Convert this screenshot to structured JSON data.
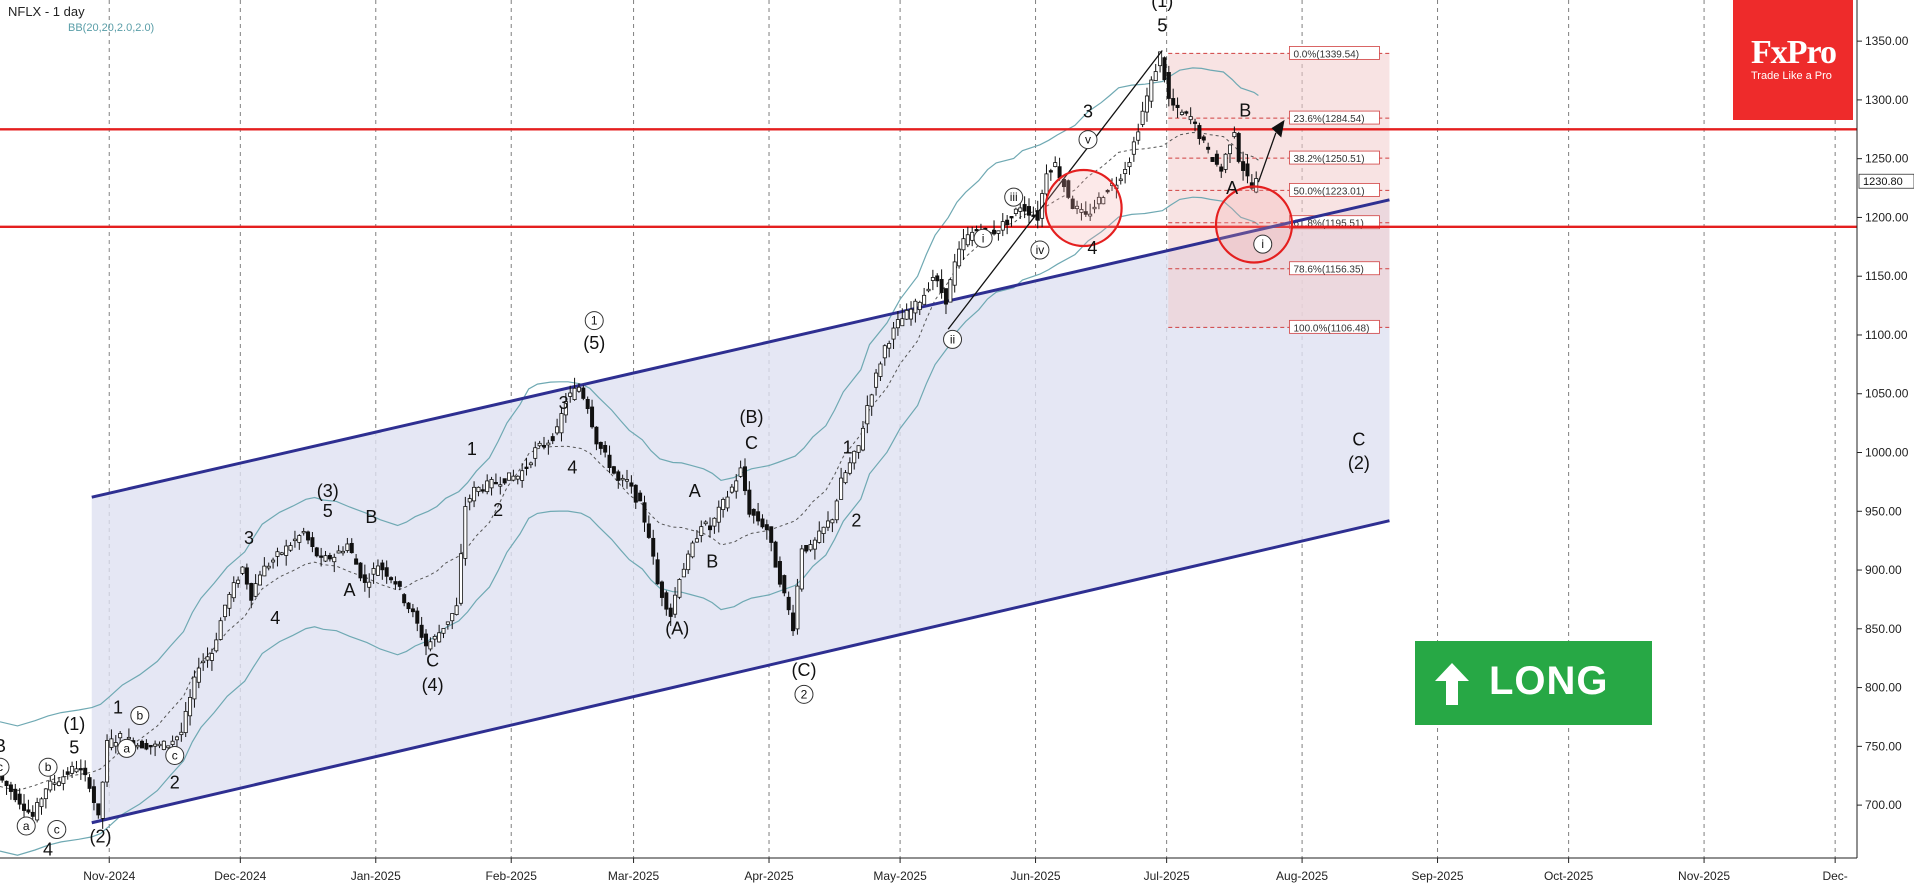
{
  "header": {
    "symbol_title": "NFLX - 1 day",
    "indicator_label": "BB(20,20,2.0,2.0)"
  },
  "brand": {
    "name": "FxPro",
    "tagline": "Trade Like a Pro",
    "color": "#ee2b2b"
  },
  "signal": {
    "label": "LONG",
    "color": "#27a845",
    "icon": "arrow-up-icon"
  },
  "chart_data": {
    "type": "candlestick",
    "title": "NFLX - 1 day",
    "ylim": [
      655,
      1385
    ],
    "y_ticks": [
      700,
      750,
      800,
      850,
      900,
      950,
      1000,
      1050,
      1100,
      1150,
      1200,
      1250,
      1300,
      1350
    ],
    "y_tick_labels": [
      "700.00",
      "750.00",
      "800.00",
      "850.00",
      "900.00",
      "950.00",
      "1000.00",
      "1050.00",
      "1100.00",
      "1150.00",
      "1200.00",
      "1250.00",
      "1300.00",
      "1350.00"
    ],
    "current_price": "1230.80",
    "x_range": [
      "2024-10-07",
      "2025-12-06"
    ],
    "x_ticks": [
      {
        "date": "2024-11-01",
        "label": "Nov-2024"
      },
      {
        "date": "2024-12-01",
        "label": "Dec-2024"
      },
      {
        "date": "2025-01-01",
        "label": "Jan-2025"
      },
      {
        "date": "2025-02-01",
        "label": "Feb-2025"
      },
      {
        "date": "2025-03-01",
        "label": "Mar-2025"
      },
      {
        "date": "2025-04-01",
        "label": "Apr-2025"
      },
      {
        "date": "2025-05-01",
        "label": "May-2025"
      },
      {
        "date": "2025-06-01",
        "label": "Jun-2025"
      },
      {
        "date": "2025-07-01",
        "label": "Jul-2025"
      },
      {
        "date": "2025-08-01",
        "label": "Aug-2025"
      },
      {
        "date": "2025-09-01",
        "label": "Sep-2025"
      },
      {
        "date": "2025-10-01",
        "label": "Oct-2025"
      },
      {
        "date": "2025-11-01",
        "label": "Nov-2025"
      },
      {
        "date": "2025-12-01",
        "label": "Dec-"
      }
    ],
    "price_path": [
      [
        "2024-10-07",
        725
      ],
      [
        "2024-10-11",
        708
      ],
      [
        "2024-10-15",
        690
      ],
      [
        "2024-10-18",
        715
      ],
      [
        "2024-10-21",
        722
      ],
      [
        "2024-10-25",
        733
      ],
      [
        "2024-10-28",
        718
      ],
      [
        "2024-10-30",
        688
      ],
      [
        "2024-11-01",
        752
      ],
      [
        "2024-11-04",
        758
      ],
      [
        "2024-11-08",
        752
      ],
      [
        "2024-11-12",
        750
      ],
      [
        "2024-11-15",
        752
      ],
      [
        "2024-11-18",
        762
      ],
      [
        "2024-11-20",
        790
      ],
      [
        "2024-11-22",
        820
      ],
      [
        "2024-11-25",
        830
      ],
      [
        "2024-11-28",
        870
      ],
      [
        "2024-12-02",
        902
      ],
      [
        "2024-12-04",
        878
      ],
      [
        "2024-12-06",
        898
      ],
      [
        "2024-12-10",
        912
      ],
      [
        "2024-12-13",
        922
      ],
      [
        "2024-12-16",
        932
      ],
      [
        "2024-12-18",
        918
      ],
      [
        "2024-12-20",
        908
      ],
      [
        "2024-12-23",
        912
      ],
      [
        "2024-12-26",
        922
      ],
      [
        "2024-12-30",
        888
      ],
      [
        "2025-01-02",
        905
      ],
      [
        "2025-01-06",
        890
      ],
      [
        "2025-01-08",
        875
      ],
      [
        "2025-01-10",
        862
      ],
      [
        "2025-01-13",
        836
      ],
      [
        "2025-01-15",
        842
      ],
      [
        "2025-01-17",
        852
      ],
      [
        "2025-01-20",
        868
      ],
      [
        "2025-01-22",
        955
      ],
      [
        "2025-01-24",
        968
      ],
      [
        "2025-01-27",
        972
      ],
      [
        "2025-01-29",
        975
      ],
      [
        "2025-01-31",
        978
      ],
      [
        "2025-02-03",
        980
      ],
      [
        "2025-02-05",
        988
      ],
      [
        "2025-02-07",
        1002
      ],
      [
        "2025-02-10",
        1010
      ],
      [
        "2025-02-12",
        1018
      ],
      [
        "2025-02-14",
        1045
      ],
      [
        "2025-02-17",
        1056
      ],
      [
        "2025-02-19",
        1040
      ],
      [
        "2025-02-21",
        1010
      ],
      [
        "2025-02-24",
        990
      ],
      [
        "2025-02-26",
        975
      ],
      [
        "2025-02-28",
        975
      ],
      [
        "2025-03-03",
        955
      ],
      [
        "2025-03-05",
        930
      ],
      [
        "2025-03-07",
        888
      ],
      [
        "2025-03-10",
        862
      ],
      [
        "2025-03-12",
        895
      ],
      [
        "2025-03-14",
        910
      ],
      [
        "2025-03-17",
        940
      ],
      [
        "2025-03-19",
        935
      ],
      [
        "2025-03-21",
        950
      ],
      [
        "2025-03-24",
        970
      ],
      [
        "2025-03-26",
        985
      ],
      [
        "2025-03-28",
        950
      ],
      [
        "2025-04-01",
        935
      ],
      [
        "2025-04-03",
        905
      ],
      [
        "2025-04-07",
        852
      ],
      [
        "2025-04-09",
        920
      ],
      [
        "2025-04-11",
        918
      ],
      [
        "2025-04-14",
        935
      ],
      [
        "2025-04-16",
        945
      ],
      [
        "2025-04-18",
        975
      ],
      [
        "2025-04-22",
        1005
      ],
      [
        "2025-04-24",
        1040
      ],
      [
        "2025-04-28",
        1090
      ],
      [
        "2025-05-01",
        1110
      ],
      [
        "2025-05-05",
        1125
      ],
      [
        "2025-05-07",
        1135
      ],
      [
        "2025-05-09",
        1150
      ],
      [
        "2025-05-12",
        1130
      ],
      [
        "2025-05-14",
        1160
      ],
      [
        "2025-05-16",
        1180
      ],
      [
        "2025-05-19",
        1190
      ],
      [
        "2025-05-21",
        1185
      ],
      [
        "2025-05-23",
        1188
      ],
      [
        "2025-05-27",
        1200
      ],
      [
        "2025-05-29",
        1210
      ],
      [
        "2025-06-02",
        1200
      ],
      [
        "2025-06-04",
        1240
      ],
      [
        "2025-06-06",
        1245
      ],
      [
        "2025-06-10",
        1210
      ],
      [
        "2025-06-13",
        1200
      ],
      [
        "2025-06-16",
        1215
      ],
      [
        "2025-06-18",
        1225
      ],
      [
        "2025-06-20",
        1230
      ],
      [
        "2025-06-23",
        1250
      ],
      [
        "2025-06-26",
        1290
      ],
      [
        "2025-06-30",
        1339
      ],
      [
        "2025-07-02",
        1300
      ],
      [
        "2025-07-04",
        1290
      ],
      [
        "2025-07-07",
        1285
      ],
      [
        "2025-07-09",
        1270
      ],
      [
        "2025-07-11",
        1255
      ],
      [
        "2025-07-14",
        1240
      ],
      [
        "2025-07-16",
        1265
      ],
      [
        "2025-07-17",
        1275
      ],
      [
        "2025-07-18",
        1250
      ],
      [
        "2025-07-21",
        1225
      ],
      [
        "2025-07-22",
        1231
      ]
    ],
    "fibonacci": {
      "levels": [
        {
          "ratio": "0.0%",
          "value": 1339.54,
          "label": "0.0%(1339.54)"
        },
        {
          "ratio": "23.6%",
          "value": 1284.54,
          "label": "23.6%(1284.54)"
        },
        {
          "ratio": "38.2%",
          "value": 1250.51,
          "label": "38.2%(1250.51)"
        },
        {
          "ratio": "50.0%",
          "value": 1223.01,
          "label": "50.0%(1223.01)"
        },
        {
          "ratio": "61.8%",
          "value": 1195.51,
          "label": "61.8%(1195.51)"
        },
        {
          "ratio": "78.6%",
          "value": 1156.35,
          "label": "78.6%(1156.35)"
        },
        {
          "ratio": "100.0%",
          "value": 1106.48,
          "label": "100.0%(1106.48)"
        }
      ],
      "date_range": [
        "2025-06-30",
        "2025-08-21"
      ]
    },
    "horizontal_lines": [
      1275,
      1192
    ],
    "channel": {
      "upper": [
        [
          "2024-10-28",
          962
        ],
        [
          "2025-08-21",
          1215
        ]
      ],
      "lower": [
        [
          "2024-10-28",
          685
        ],
        [
          "2025-08-21",
          942
        ]
      ]
    },
    "circles": [
      {
        "date": "2025-06-12",
        "price": 1208
      },
      {
        "date": "2025-07-21",
        "price": 1194
      }
    ],
    "annotations": [
      {
        "text": "B",
        "date": "2024-10-07",
        "price": 745
      },
      {
        "text": "c",
        "date": "2024-10-07",
        "price": 728,
        "circled": true
      },
      {
        "text": "a",
        "date": "2024-10-13",
        "price": 678,
        "circled": true
      },
      {
        "text": "b",
        "date": "2024-10-18",
        "price": 728,
        "circled": true
      },
      {
        "text": "c",
        "date": "2024-10-20",
        "price": 675,
        "circled": true
      },
      {
        "text": "4",
        "date": "2024-10-18",
        "price": 657
      },
      {
        "text": "(1)",
        "date": "2024-10-24",
        "price": 764
      },
      {
        "text": "5",
        "date": "2024-10-24",
        "price": 744
      },
      {
        "text": "(2)",
        "date": "2024-10-30",
        "price": 668
      },
      {
        "text": "1",
        "date": "2024-11-03",
        "price": 778
      },
      {
        "text": "b",
        "date": "2024-11-08",
        "price": 772,
        "circled": true
      },
      {
        "text": "a",
        "date": "2024-11-05",
        "price": 744,
        "circled": true
      },
      {
        "text": "c",
        "date": "2024-11-16",
        "price": 738,
        "circled": true
      },
      {
        "text": "2",
        "date": "2024-11-16",
        "price": 714
      },
      {
        "text": "3",
        "date": "2024-12-03",
        "price": 922
      },
      {
        "text": "4",
        "date": "2024-12-09",
        "price": 854
      },
      {
        "text": "(3)",
        "date": "2024-12-21",
        "price": 962
      },
      {
        "text": "5",
        "date": "2024-12-21",
        "price": 945
      },
      {
        "text": "B",
        "date": "2024-12-31",
        "price": 940
      },
      {
        "text": "A",
        "date": "2024-12-26",
        "price": 878
      },
      {
        "text": "C",
        "date": "2025-01-14",
        "price": 818
      },
      {
        "text": "(4)",
        "date": "2025-01-14",
        "price": 797
      },
      {
        "text": "1",
        "date": "2025-01-23",
        "price": 998
      },
      {
        "text": "2",
        "date": "2025-01-29",
        "price": 946
      },
      {
        "text": "3",
        "date": "2025-02-13",
        "price": 1037
      },
      {
        "text": "4",
        "date": "2025-02-15",
        "price": 982
      },
      {
        "text": "1",
        "date": "2025-02-20",
        "price": 1108,
        "circled": true
      },
      {
        "text": "(5)",
        "date": "2025-02-20",
        "price": 1088
      },
      {
        "text": "A",
        "date": "2025-03-15",
        "price": 962
      },
      {
        "text": "B",
        "date": "2025-03-19",
        "price": 902
      },
      {
        "text": "(A)",
        "date": "2025-03-11",
        "price": 845
      },
      {
        "text": "(B)",
        "date": "2025-03-28",
        "price": 1025
      },
      {
        "text": "C",
        "date": "2025-03-28",
        "price": 1003
      },
      {
        "text": "(C)",
        "date": "2025-04-09",
        "price": 810
      },
      {
        "text": "2",
        "date": "2025-04-09",
        "price": 790,
        "circled": true
      },
      {
        "text": "1",
        "date": "2025-04-19",
        "price": 999
      },
      {
        "text": "2",
        "date": "2025-04-21",
        "price": 937
      },
      {
        "text": "i",
        "date": "2025-05-20",
        "price": 1178,
        "circled": true
      },
      {
        "text": "ii",
        "date": "2025-05-13",
        "price": 1092,
        "circled": true
      },
      {
        "text": "iii",
        "date": "2025-05-27",
        "price": 1213,
        "circled": true
      },
      {
        "text": "iv",
        "date": "2025-06-02",
        "price": 1168,
        "circled": true
      },
      {
        "text": "v",
        "date": "2025-06-13",
        "price": 1262,
        "circled": true
      },
      {
        "text": "3",
        "date": "2025-06-13",
        "price": 1285
      },
      {
        "text": "4",
        "date": "2025-06-14",
        "price": 1169
      },
      {
        "text": "(1)",
        "date": "2025-06-30",
        "price": 1379
      },
      {
        "text": "5",
        "date": "2025-06-30",
        "price": 1358
      },
      {
        "text": "B",
        "date": "2025-07-19",
        "price": 1286
      },
      {
        "text": "A",
        "date": "2025-07-16",
        "price": 1220
      },
      {
        "text": "i",
        "date": "2025-07-23",
        "price": 1173,
        "circled": true
      },
      {
        "text": "C",
        "date": "2025-08-14",
        "price": 1006
      },
      {
        "text": "(2)",
        "date": "2025-08-14",
        "price": 986
      }
    ]
  }
}
